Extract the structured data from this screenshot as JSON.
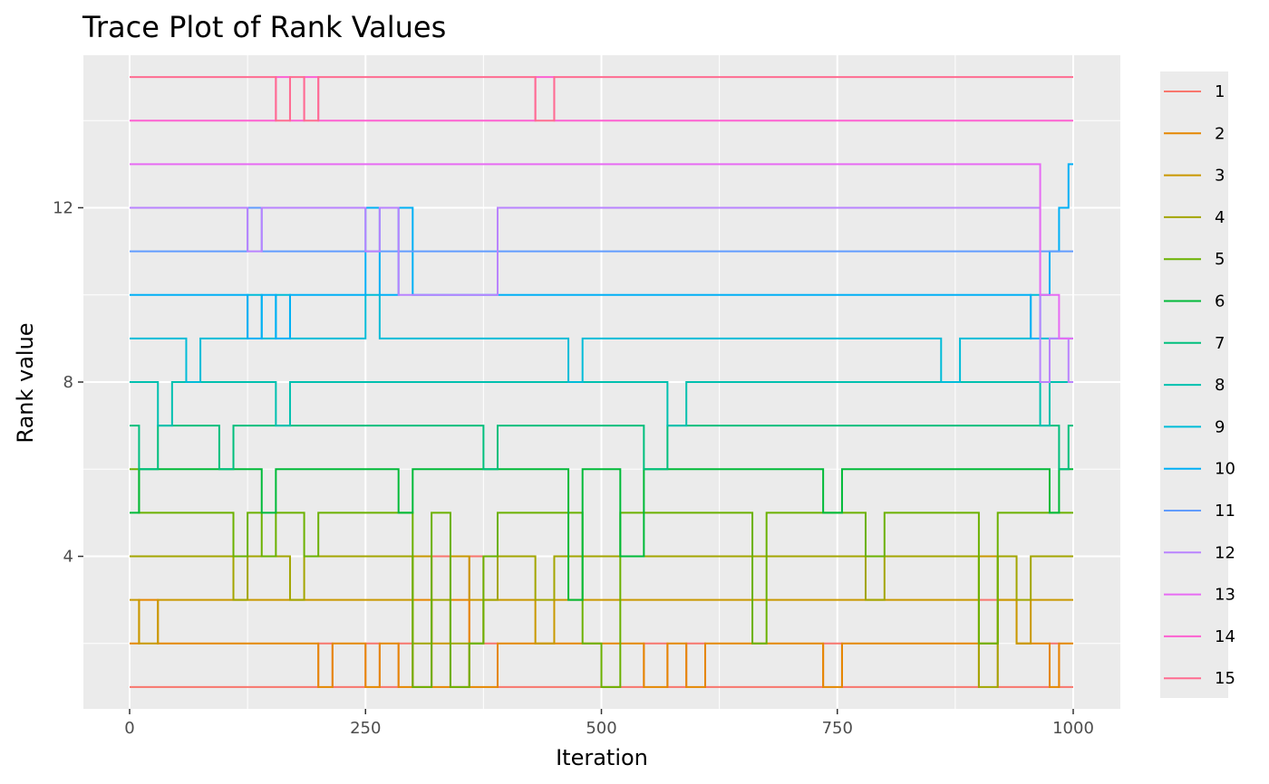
{
  "chart_data": {
    "type": "line",
    "title": "Trace Plot of Rank Values",
    "xlabel": "Iteration",
    "ylabel": "Rank value",
    "xlim": [
      0,
      1000
    ],
    "ylim": [
      0.5,
      15.5
    ],
    "x_ticks": [
      0,
      250,
      500,
      750,
      1000
    ],
    "y_ticks": [
      4,
      8,
      12
    ],
    "grid": true,
    "legend_position": "right",
    "step_iterations": [
      0,
      10,
      30,
      45,
      60,
      75,
      95,
      110,
      125,
      140,
      155,
      170,
      185,
      200,
      215,
      235,
      250,
      265,
      285,
      300,
      320,
      340,
      360,
      375,
      390,
      420,
      430,
      450,
      465,
      480,
      500,
      520,
      545,
      570,
      590,
      610,
      640,
      660,
      675,
      690,
      710,
      735,
      755,
      780,
      800,
      830,
      860,
      880,
      900,
      920,
      940,
      955,
      965,
      975,
      985,
      995,
      1000
    ],
    "series": [
      {
        "name": "1",
        "color": "#F8766D",
        "start": 1,
        "end": 1,
        "values": [
          1,
          1,
          1,
          1,
          1,
          1,
          1,
          1,
          1,
          1,
          1,
          1,
          1,
          2,
          1,
          1,
          2,
          1,
          2,
          1,
          4,
          1,
          4,
          2,
          1,
          1,
          1,
          1,
          1,
          1,
          1,
          1,
          2,
          1,
          2,
          1,
          1,
          1,
          1,
          1,
          1,
          2,
          1,
          1,
          1,
          1,
          1,
          1,
          3,
          1,
          1,
          1,
          1,
          2,
          1,
          1,
          1
        ]
      },
      {
        "name": "2",
        "color": "#E58700",
        "start": 2,
        "end": 2,
        "values": [
          2,
          3,
          2,
          2,
          2,
          2,
          2,
          2,
          2,
          2,
          2,
          2,
          2,
          1,
          2,
          2,
          1,
          2,
          1,
          3,
          1,
          3,
          1,
          1,
          2,
          2,
          2,
          2,
          2,
          2,
          2,
          2,
          1,
          2,
          1,
          2,
          2,
          2,
          2,
          2,
          2,
          1,
          2,
          2,
          2,
          2,
          2,
          2,
          2,
          3,
          2,
          2,
          2,
          1,
          2,
          2,
          2
        ]
      },
      {
        "name": "3",
        "color": "#C99800",
        "start": 3,
        "end": 3,
        "values": [
          3,
          2,
          3,
          3,
          3,
          3,
          3,
          3,
          3,
          3,
          3,
          3,
          3,
          3,
          3,
          3,
          3,
          3,
          3,
          4,
          2,
          4,
          3,
          3,
          3,
          3,
          2,
          3,
          3,
          3,
          3,
          3,
          3,
          3,
          3,
          3,
          3,
          3,
          3,
          3,
          3,
          3,
          3,
          3,
          3,
          3,
          3,
          3,
          4,
          3,
          2,
          3,
          3,
          3,
          3,
          3,
          3
        ]
      },
      {
        "name": "4",
        "color": "#A3A500",
        "start": 4,
        "end": 4,
        "values": [
          4,
          4,
          4,
          4,
          4,
          4,
          4,
          3,
          4,
          4,
          4,
          3,
          4,
          4,
          4,
          4,
          4,
          4,
          4,
          2,
          3,
          2,
          2,
          3,
          4,
          4,
          3,
          4,
          4,
          4,
          4,
          4,
          4,
          4,
          4,
          4,
          4,
          4,
          4,
          4,
          4,
          4,
          4,
          3,
          4,
          4,
          4,
          4,
          1,
          4,
          3,
          4,
          4,
          4,
          4,
          4,
          4
        ]
      },
      {
        "name": "5",
        "color": "#6BB100",
        "start": 5,
        "end": 5,
        "values": [
          6,
          5,
          5,
          5,
          5,
          5,
          5,
          4,
          5,
          4,
          5,
          5,
          4,
          5,
          5,
          5,
          5,
          5,
          5,
          1,
          5,
          1,
          2,
          4,
          5,
          5,
          5,
          5,
          5,
          2,
          1,
          5,
          5,
          5,
          5,
          5,
          5,
          2,
          5,
          5,
          5,
          5,
          5,
          4,
          5,
          5,
          5,
          5,
          2,
          5,
          5,
          5,
          5,
          5,
          5,
          5,
          5
        ]
      },
      {
        "name": "6",
        "color": "#00BA38",
        "start": 6,
        "end": 6,
        "values": [
          5,
          6,
          6,
          6,
          6,
          6,
          6,
          6,
          6,
          5,
          6,
          6,
          6,
          6,
          6,
          6,
          6,
          6,
          5,
          6,
          6,
          6,
          6,
          6,
          6,
          6,
          6,
          6,
          3,
          6,
          6,
          4,
          6,
          6,
          6,
          6,
          6,
          6,
          6,
          6,
          6,
          5,
          6,
          6,
          6,
          6,
          6,
          6,
          6,
          6,
          6,
          6,
          6,
          5,
          6,
          6,
          6
        ]
      },
      {
        "name": "7",
        "color": "#00BF7D",
        "start": 7,
        "end": 7,
        "values": [
          7,
          6,
          7,
          7,
          7,
          7,
          6,
          7,
          7,
          7,
          7,
          7,
          7,
          7,
          7,
          7,
          7,
          7,
          7,
          7,
          7,
          7,
          7,
          6,
          7,
          7,
          7,
          7,
          7,
          7,
          7,
          7,
          6,
          7,
          7,
          7,
          7,
          7,
          7,
          7,
          7,
          7,
          7,
          7,
          7,
          7,
          7,
          7,
          7,
          7,
          7,
          7,
          7,
          7,
          6,
          7,
          7
        ]
      },
      {
        "name": "8",
        "color": "#00C0AF",
        "start": 8,
        "end": 8,
        "values": [
          8,
          8,
          7,
          8,
          8,
          8,
          8,
          8,
          8,
          8,
          7,
          8,
          8,
          8,
          8,
          8,
          8,
          8,
          8,
          8,
          8,
          8,
          8,
          8,
          8,
          8,
          8,
          8,
          8,
          8,
          8,
          8,
          8,
          7,
          8,
          8,
          8,
          8,
          8,
          8,
          8,
          8,
          8,
          8,
          8,
          8,
          8,
          8,
          8,
          8,
          8,
          8,
          7,
          8,
          8,
          8,
          8
        ]
      },
      {
        "name": "9",
        "color": "#00BCD8",
        "start": 9,
        "end": 9,
        "values": [
          9,
          9,
          9,
          9,
          8,
          9,
          9,
          9,
          10,
          9,
          10,
          9,
          9,
          9,
          9,
          9,
          10,
          9,
          9,
          9,
          9,
          9,
          9,
          9,
          9,
          9,
          9,
          9,
          8,
          9,
          9,
          9,
          9,
          9,
          9,
          9,
          9,
          9,
          9,
          9,
          9,
          9,
          9,
          9,
          9,
          9,
          8,
          9,
          9,
          9,
          9,
          10,
          9,
          9,
          9,
          9,
          9
        ]
      },
      {
        "name": "10",
        "color": "#00B0F6",
        "start": 10,
        "end": 10,
        "values": [
          10,
          10,
          10,
          10,
          10,
          10,
          10,
          10,
          9,
          10,
          9,
          10,
          10,
          10,
          10,
          10,
          12,
          10,
          12,
          10,
          10,
          10,
          10,
          10,
          10,
          10,
          10,
          10,
          10,
          10,
          10,
          10,
          10,
          10,
          10,
          10,
          10,
          10,
          10,
          10,
          10,
          10,
          10,
          10,
          10,
          10,
          10,
          10,
          10,
          10,
          10,
          9,
          10,
          11,
          12,
          13,
          13
        ]
      },
      {
        "name": "11",
        "color": "#619CFF",
        "start": 11,
        "end": 11,
        "values": [
          11,
          11,
          11,
          11,
          11,
          11,
          11,
          11,
          12,
          11,
          11,
          11,
          11,
          11,
          11,
          11,
          11,
          11,
          11,
          11,
          11,
          11,
          11,
          11,
          11,
          11,
          11,
          11,
          11,
          11,
          11,
          11,
          11,
          11,
          11,
          11,
          11,
          11,
          11,
          11,
          11,
          11,
          11,
          11,
          11,
          11,
          11,
          11,
          11,
          11,
          11,
          11,
          11,
          11,
          11,
          11,
          11
        ]
      },
      {
        "name": "12",
        "color": "#B983FF",
        "start": 12,
        "end": 12,
        "values": [
          12,
          12,
          12,
          12,
          12,
          12,
          12,
          12,
          11,
          12,
          12,
          12,
          12,
          12,
          12,
          12,
          11,
          12,
          10,
          10,
          10,
          10,
          10,
          10,
          12,
          12,
          12,
          12,
          12,
          12,
          12,
          12,
          12,
          12,
          12,
          12,
          12,
          12,
          12,
          12,
          12,
          12,
          12,
          12,
          12,
          12,
          12,
          12,
          12,
          12,
          12,
          12,
          8,
          9,
          9,
          8,
          8
        ]
      },
      {
        "name": "13",
        "color": "#E76BF3",
        "start": 13,
        "end": 13,
        "values": [
          13,
          13,
          13,
          13,
          13,
          13,
          13,
          13,
          13,
          13,
          13,
          13,
          13,
          13,
          13,
          13,
          13,
          13,
          13,
          13,
          13,
          13,
          13,
          13,
          13,
          13,
          13,
          13,
          13,
          13,
          13,
          13,
          13,
          13,
          13,
          13,
          13,
          13,
          13,
          13,
          13,
          13,
          13,
          13,
          13,
          13,
          13,
          13,
          13,
          13,
          13,
          13,
          10,
          10,
          9,
          9,
          9
        ]
      },
      {
        "name": "14",
        "color": "#FD61D1",
        "start": 14,
        "end": 14,
        "values": [
          14,
          14,
          14,
          14,
          14,
          14,
          14,
          14,
          14,
          14,
          15,
          14,
          15,
          14,
          14,
          14,
          14,
          14,
          14,
          14,
          14,
          14,
          14,
          14,
          14,
          14,
          15,
          14,
          14,
          14,
          14,
          14,
          14,
          14,
          14,
          14,
          14,
          14,
          14,
          14,
          14,
          14,
          14,
          14,
          14,
          14,
          14,
          14,
          14,
          14,
          14,
          14,
          14,
          14,
          14,
          14,
          14
        ]
      },
      {
        "name": "15",
        "color": "#FF6C91",
        "start": 15,
        "end": 15,
        "values": [
          15,
          15,
          15,
          15,
          15,
          15,
          15,
          15,
          15,
          15,
          14,
          15,
          14,
          15,
          15,
          15,
          15,
          15,
          15,
          15,
          15,
          15,
          15,
          15,
          15,
          15,
          14,
          15,
          15,
          15,
          15,
          15,
          15,
          15,
          15,
          15,
          15,
          15,
          15,
          15,
          15,
          15,
          15,
          15,
          15,
          15,
          15,
          15,
          15,
          15,
          15,
          15,
          15,
          15,
          15,
          15,
          15
        ]
      }
    ]
  }
}
